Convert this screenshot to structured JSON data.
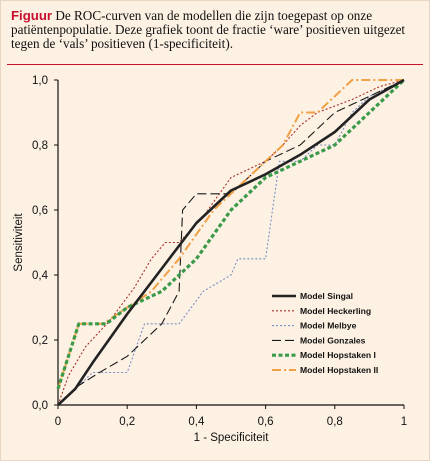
{
  "caption": {
    "label": "Figuur",
    "text": "De ROC-curven van de modellen die zijn toegepast op onze patiëntenpopulatie. Deze grafiek toont de fractie ‘ware’ positieven uitgezet tegen de ‘vals’ positieven (1-specificiteit)."
  },
  "colors": {
    "caption_label": "#c8102e",
    "rule": "#c8102e",
    "background": "#fdf1e3"
  },
  "chart_data": {
    "type": "line",
    "xlabel": "1 - Specificiteit",
    "ylabel": "Sensitiviteit",
    "xlim": [
      0,
      1
    ],
    "ylim": [
      0,
      1
    ],
    "xticks": [
      "0",
      "0,2",
      "0,4",
      "0,6",
      "0,8",
      "1"
    ],
    "yticks": [
      "0,0",
      "0,2",
      "0,4",
      "0,6",
      "0,8",
      "1,0"
    ],
    "grid": false,
    "legend_position": "bottom-right",
    "series": [
      {
        "name": "Model Singal",
        "color": "#222222",
        "style": "solid",
        "points": [
          [
            0,
            0
          ],
          [
            0.05,
            0.05
          ],
          [
            0.1,
            0.13
          ],
          [
            0.2,
            0.28
          ],
          [
            0.3,
            0.42
          ],
          [
            0.4,
            0.56
          ],
          [
            0.5,
            0.66
          ],
          [
            0.6,
            0.71
          ],
          [
            0.7,
            0.77
          ],
          [
            0.8,
            0.84
          ],
          [
            0.85,
            0.89
          ],
          [
            0.9,
            0.94
          ],
          [
            0.95,
            0.97
          ],
          [
            1,
            1
          ]
        ]
      },
      {
        "name": "Model Heckerling",
        "color": "#a8322d",
        "style": "dotted",
        "points": [
          [
            0,
            0
          ],
          [
            0.03,
            0.09
          ],
          [
            0.08,
            0.18
          ],
          [
            0.15,
            0.26
          ],
          [
            0.22,
            0.36
          ],
          [
            0.27,
            0.45
          ],
          [
            0.31,
            0.5
          ],
          [
            0.35,
            0.5
          ],
          [
            0.42,
            0.58
          ],
          [
            0.5,
            0.7
          ],
          [
            0.6,
            0.75
          ],
          [
            0.65,
            0.8
          ],
          [
            0.7,
            0.86
          ],
          [
            0.75,
            0.9
          ],
          [
            0.85,
            0.94
          ],
          [
            0.93,
            0.98
          ],
          [
            1,
            1
          ]
        ]
      },
      {
        "name": "Model Melbye",
        "color": "#7b8fc4",
        "style": "dotted",
        "points": [
          [
            0,
            0
          ],
          [
            0.05,
            0.05
          ],
          [
            0.1,
            0.1
          ],
          [
            0.2,
            0.1
          ],
          [
            0.25,
            0.25
          ],
          [
            0.35,
            0.25
          ],
          [
            0.42,
            0.35
          ],
          [
            0.5,
            0.4
          ],
          [
            0.52,
            0.45
          ],
          [
            0.6,
            0.45
          ],
          [
            0.64,
            0.75
          ],
          [
            0.7,
            0.75
          ],
          [
            0.75,
            0.8
          ],
          [
            0.8,
            0.8
          ],
          [
            0.85,
            0.9
          ],
          [
            0.9,
            0.95
          ],
          [
            1,
            1
          ]
        ]
      },
      {
        "name": "Model Gonzales",
        "color": "#1a1a1a",
        "style": "dashed",
        "points": [
          [
            0,
            0
          ],
          [
            0.06,
            0.06
          ],
          [
            0.12,
            0.1
          ],
          [
            0.2,
            0.15
          ],
          [
            0.3,
            0.25
          ],
          [
            0.35,
            0.35
          ],
          [
            0.36,
            0.6
          ],
          [
            0.4,
            0.65
          ],
          [
            0.5,
            0.65
          ],
          [
            0.6,
            0.75
          ],
          [
            0.7,
            0.8
          ],
          [
            0.8,
            0.9
          ],
          [
            0.9,
            0.95
          ],
          [
            1,
            1
          ]
        ]
      },
      {
        "name": "Model Hopstaken I",
        "color": "#3a9a4a",
        "style": "thickdotted",
        "points": [
          [
            0,
            0.05
          ],
          [
            0.06,
            0.25
          ],
          [
            0.14,
            0.25
          ],
          [
            0.2,
            0.3
          ],
          [
            0.3,
            0.35
          ],
          [
            0.4,
            0.45
          ],
          [
            0.5,
            0.6
          ],
          [
            0.6,
            0.7
          ],
          [
            0.7,
            0.75
          ],
          [
            0.8,
            0.8
          ],
          [
            0.9,
            0.9
          ],
          [
            1,
            1
          ]
        ]
      },
      {
        "name": "Model Hopstaken II",
        "color": "#f0a045",
        "style": "dashdot",
        "points": [
          [
            0,
            0.05
          ],
          [
            0.06,
            0.25
          ],
          [
            0.13,
            0.25
          ],
          [
            0.2,
            0.3
          ],
          [
            0.27,
            0.35
          ],
          [
            0.35,
            0.45
          ],
          [
            0.45,
            0.6
          ],
          [
            0.55,
            0.7
          ],
          [
            0.65,
            0.8
          ],
          [
            0.7,
            0.9
          ],
          [
            0.75,
            0.9
          ],
          [
            0.85,
            1
          ],
          [
            0.95,
            1
          ],
          [
            1,
            1
          ]
        ]
      }
    ]
  }
}
